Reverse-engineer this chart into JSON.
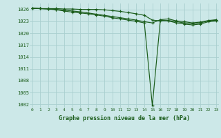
{
  "title": "Graphe pression niveau de la mer (hPa)",
  "bg": "#cce8e8",
  "grid_color": "#aacfcf",
  "line_color": "#1a5c1a",
  "xlim": [
    -0.3,
    23.3
  ],
  "ylim": [
    1001.2,
    1027.5
  ],
  "yticks": [
    1002,
    1005,
    1008,
    1011,
    1014,
    1017,
    1020,
    1023,
    1026
  ],
  "xticks": [
    0,
    1,
    2,
    3,
    4,
    5,
    6,
    7,
    8,
    9,
    10,
    11,
    12,
    13,
    14,
    15,
    16,
    17,
    18,
    19,
    20,
    21,
    22,
    23
  ],
  "xtick_labels": [
    "0",
    "1",
    "2",
    "3",
    "4",
    "5",
    "6",
    "7",
    "8",
    "9",
    "10",
    "11",
    "12",
    "13",
    "14",
    "15",
    "16",
    "17",
    "18",
    "19",
    "20",
    "21",
    "22",
    "23"
  ],
  "series": [
    [
      1026.3,
      1026.2,
      1026.2,
      1026.2,
      1026.1,
      1026.1,
      1026.0,
      1026.0,
      1026.0,
      1025.9,
      1025.7,
      1025.5,
      1025.2,
      1024.9,
      1024.5,
      1023.3,
      1023.1,
      1023.2,
      1022.9,
      1022.6,
      1022.4,
      1022.6,
      1023.1,
      1023.3
    ],
    [
      1026.3,
      1026.2,
      1026.1,
      1025.9,
      1025.6,
      1025.3,
      1025.1,
      1024.9,
      1024.6,
      1024.3,
      1023.9,
      1023.6,
      1023.3,
      1023.0,
      1022.6,
      1001.7,
      1023.3,
      1023.1,
      1022.6,
      1022.3,
      1022.1,
      1022.3,
      1022.9,
      1023.1
    ],
    [
      1026.3,
      1026.2,
      1026.1,
      1026.0,
      1025.8,
      1025.6,
      1025.4,
      1025.1,
      1024.8,
      1024.5,
      1024.2,
      1023.9,
      1023.6,
      1023.3,
      1022.9,
      1022.6,
      1023.4,
      1023.6,
      1023.1,
      1022.9,
      1022.6,
      1022.8,
      1023.2,
      1023.4
    ]
  ]
}
